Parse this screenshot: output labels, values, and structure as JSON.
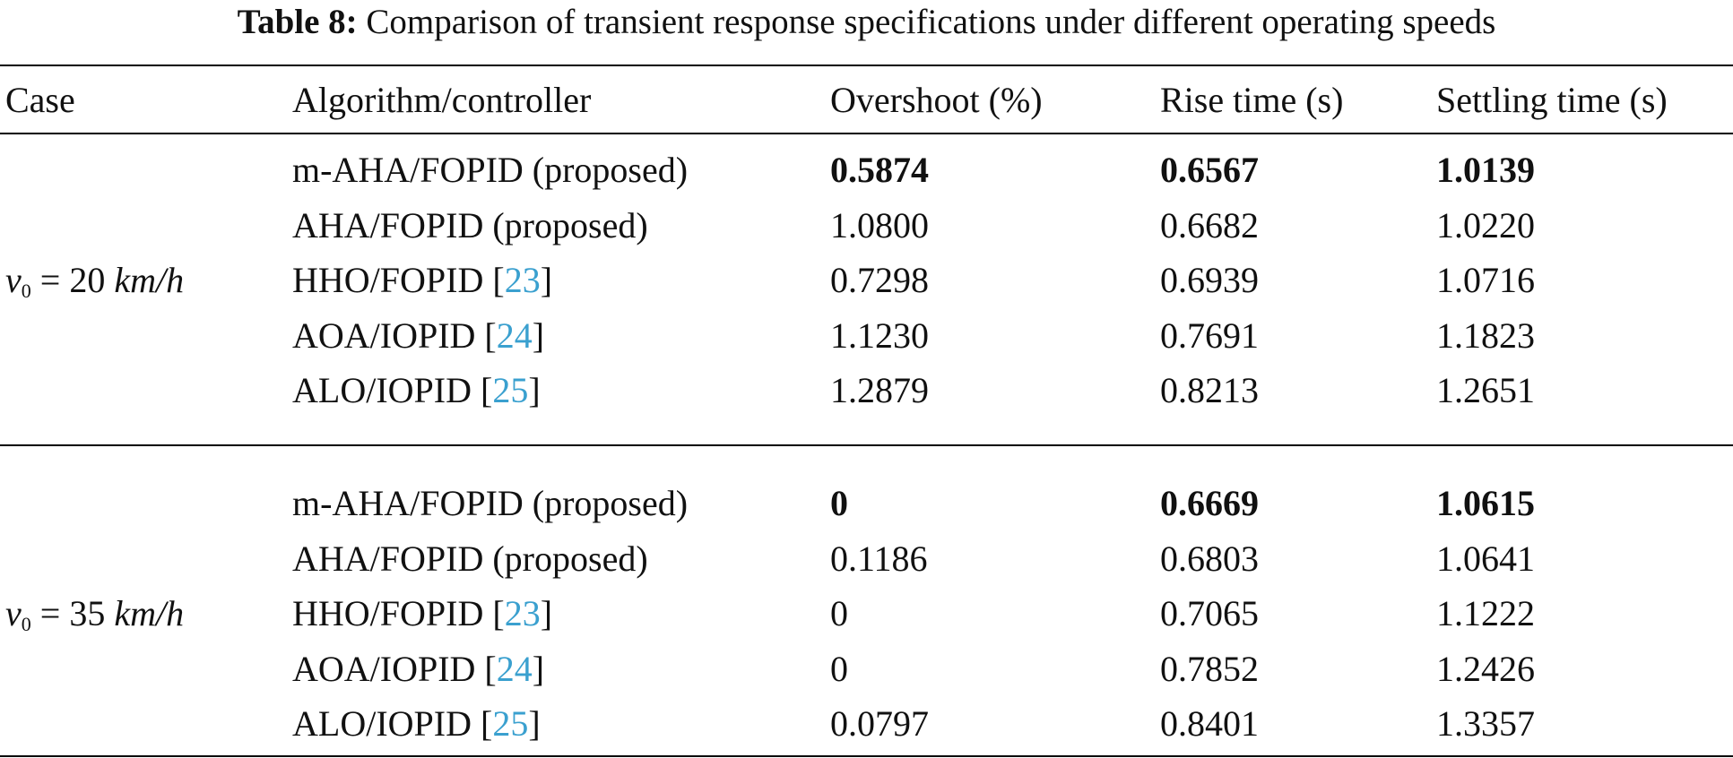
{
  "caption": {
    "label": "Table 8:",
    "text": "Comparison of transient response specifications under different operating speeds"
  },
  "header": {
    "case": "Case",
    "algorithm": "Algorithm/controller",
    "overshoot": "Overshoot (%)",
    "rise": "Rise time (s)",
    "settling": "Settling time (s)"
  },
  "groups": [
    {
      "case_var": "v",
      "case_sub": "0",
      "case_eq": " = 20 ",
      "case_unit": "km/h",
      "rows": [
        {
          "alg": "m-AHA/FOPID (proposed)",
          "ref": "",
          "close": "",
          "overshoot": "0.5874",
          "rise": "0.6567",
          "settling": "1.0139",
          "bold_over": true,
          "bold_rise": true,
          "bold_settle": true
        },
        {
          "alg": "AHA/FOPID (proposed)",
          "ref": "",
          "close": "",
          "overshoot": "1.0800",
          "rise": "0.6682",
          "settling": "1.0220"
        },
        {
          "alg": "HHO/FOPID [",
          "ref": "23",
          "close": "]",
          "overshoot": "0.7298",
          "rise": "0.6939",
          "settling": "1.0716"
        },
        {
          "alg": "AOA/IOPID [",
          "ref": "24",
          "close": "]",
          "overshoot": "1.1230",
          "rise": "0.7691",
          "settling": "1.1823"
        },
        {
          "alg": "ALO/IOPID [",
          "ref": "25",
          "close": "]",
          "overshoot": "1.2879",
          "rise": "0.8213",
          "settling": "1.2651"
        }
      ]
    },
    {
      "case_var": "v",
      "case_sub": "0",
      "case_eq": " = 35 ",
      "case_unit": "km/h",
      "rows": [
        {
          "alg": "m-AHA/FOPID (proposed)",
          "ref": "",
          "close": "",
          "overshoot": "0",
          "rise": "0.6669",
          "settling": "1.0615",
          "bold_over": true,
          "bold_rise": true,
          "bold_settle": true
        },
        {
          "alg": "AHA/FOPID (proposed)",
          "ref": "",
          "close": "",
          "overshoot": "0.1186",
          "rise": "0.6803",
          "settling": "1.0641"
        },
        {
          "alg": "HHO/FOPID [",
          "ref": "23",
          "close": "]",
          "overshoot": "0",
          "rise": "0.7065",
          "settling": "1.1222"
        },
        {
          "alg": "AOA/IOPID [",
          "ref": "24",
          "close": "]",
          "overshoot": "0",
          "rise": "0.7852",
          "settling": "1.2426"
        },
        {
          "alg": "ALO/IOPID [",
          "ref": "25",
          "close": "]",
          "overshoot": "0.0797",
          "rise": "0.8401",
          "settling": "1.3357"
        }
      ]
    }
  ]
}
